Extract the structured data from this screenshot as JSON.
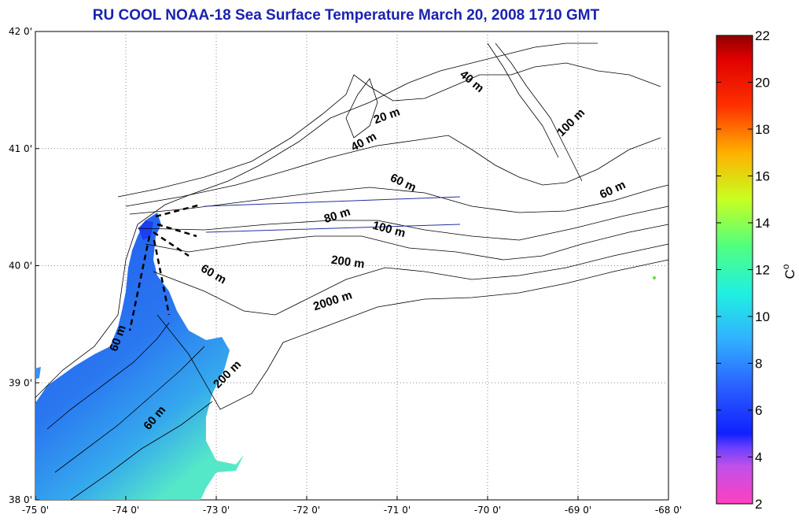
{
  "title": "RU COOL  NOAA-18 Sea Surface Temperature March 20, 2008 1710 GMT",
  "colors": {
    "title": "#1a22b0",
    "land_contour": "#000000",
    "grid": "#888888",
    "transect": "#2030a0",
    "sst_cold": "#1f55f0",
    "sst_mid": "#35a0ee",
    "sst_warm": "#55f0c0"
  },
  "chart_data": {
    "type": "heatmap",
    "x_axis": {
      "range": [
        -75,
        -68
      ],
      "ticks": [
        -75,
        -74,
        -73,
        -72,
        -71,
        -70,
        -69,
        -68
      ],
      "tick_labels": [
        "-75 0'",
        "-74 0'",
        "-73 0'",
        "-72 0'",
        "-71 0'",
        "-70 0'",
        "-69 0'",
        "-68 0'"
      ]
    },
    "y_axis": {
      "range": [
        38,
        42
      ],
      "ticks": [
        38,
        39,
        40,
        41,
        42
      ],
      "tick_labels": [
        "38 0'",
        "39 0'",
        "40 0'",
        "41 0'",
        "42 0'"
      ]
    },
    "grid": true,
    "depth_labels": [
      {
        "text": "40 m",
        "lon": -70.2,
        "lat": 41.55
      },
      {
        "text": "20 m",
        "lon": -71.1,
        "lat": 41.25
      },
      {
        "text": "100 m",
        "lon": -69.05,
        "lat": 41.2
      },
      {
        "text": "40 m",
        "lon": -71.35,
        "lat": 41.03
      },
      {
        "text": "60 m",
        "lon": -70.95,
        "lat": 40.68
      },
      {
        "text": "60 m",
        "lon": -68.6,
        "lat": 40.62
      },
      {
        "text": "80 m",
        "lon": -71.65,
        "lat": 40.4
      },
      {
        "text": "100 m",
        "lon": -71.1,
        "lat": 40.28
      },
      {
        "text": "200 m",
        "lon": -71.55,
        "lat": 40.0
      },
      {
        "text": "60 m",
        "lon": -73.05,
        "lat": 39.9
      },
      {
        "text": "2000 m",
        "lon": -71.7,
        "lat": 39.67
      },
      {
        "text": "60 m",
        "lon": -74.05,
        "lat": 39.37
      },
      {
        "text": "200 m",
        "lon": -72.85,
        "lat": 39.05
      },
      {
        "text": "60 m",
        "lon": -73.65,
        "lat": 38.68
      }
    ],
    "colorbar": {
      "range": [
        2,
        22
      ],
      "ticks": [
        2,
        4,
        6,
        8,
        10,
        12,
        14,
        16,
        18,
        20,
        22
      ],
      "tick_labels": [
        "2",
        "4",
        "6",
        "8",
        "10",
        "12",
        "14",
        "16",
        "18",
        "20",
        "22"
      ],
      "unit": "C",
      "unit_superscript": "o"
    }
  }
}
